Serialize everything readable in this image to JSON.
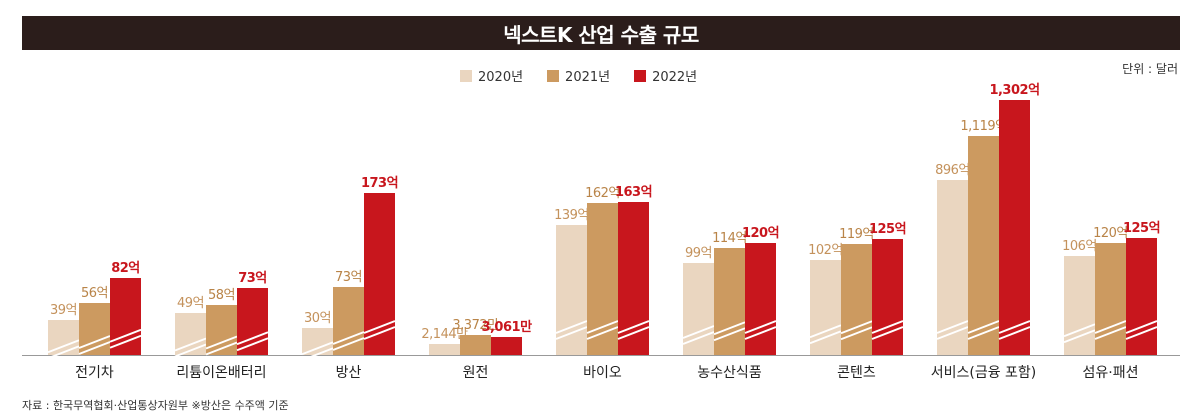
{
  "title": "넥스트K 산업 수출 규모",
  "unit": "단위 : 달러",
  "source": "자료 : 한국무역협회·산업통상자원부  ※방산은 수주액 기준",
  "colors": {
    "2020년": "#ead6c0",
    "2021년": "#cc9a60",
    "2022년": "#c8161d",
    "label_2020": "#c4925c",
    "label_2021": "#b98448",
    "label_2022": "#c8161d"
  },
  "chart_data": {
    "type": "bar",
    "categories": [
      "전기차",
      "리튬이온배터리",
      "방산",
      "원전",
      "바이오",
      "농수산식품",
      "콘텐츠",
      "서비스(금융 포함)",
      "섬유·패션"
    ],
    "series": [
      {
        "name": "2020년",
        "values": [
          39,
          49,
          30,
          0.2144,
          139,
          99,
          102,
          896,
          106
        ],
        "labels": [
          "39억",
          "49억",
          "30억",
          "2,144만",
          "139억",
          "99억",
          "102억",
          "896억",
          "106억"
        ]
      },
      {
        "name": "2021년",
        "values": [
          56,
          58,
          73,
          0.3372,
          162,
          114,
          119,
          1119,
          120
        ],
        "labels": [
          "56억",
          "58억",
          "73억",
          "3,372만",
          "162억",
          "114억",
          "119억",
          "1,119억",
          "120억"
        ]
      },
      {
        "name": "2022년",
        "values": [
          82,
          73,
          173,
          0.3061,
          163,
          120,
          125,
          1302,
          125
        ],
        "labels": [
          "82억",
          "73억",
          "173억",
          "3,061만",
          "163억",
          "120억",
          "125억",
          "1,302억",
          "125억"
        ]
      }
    ]
  }
}
